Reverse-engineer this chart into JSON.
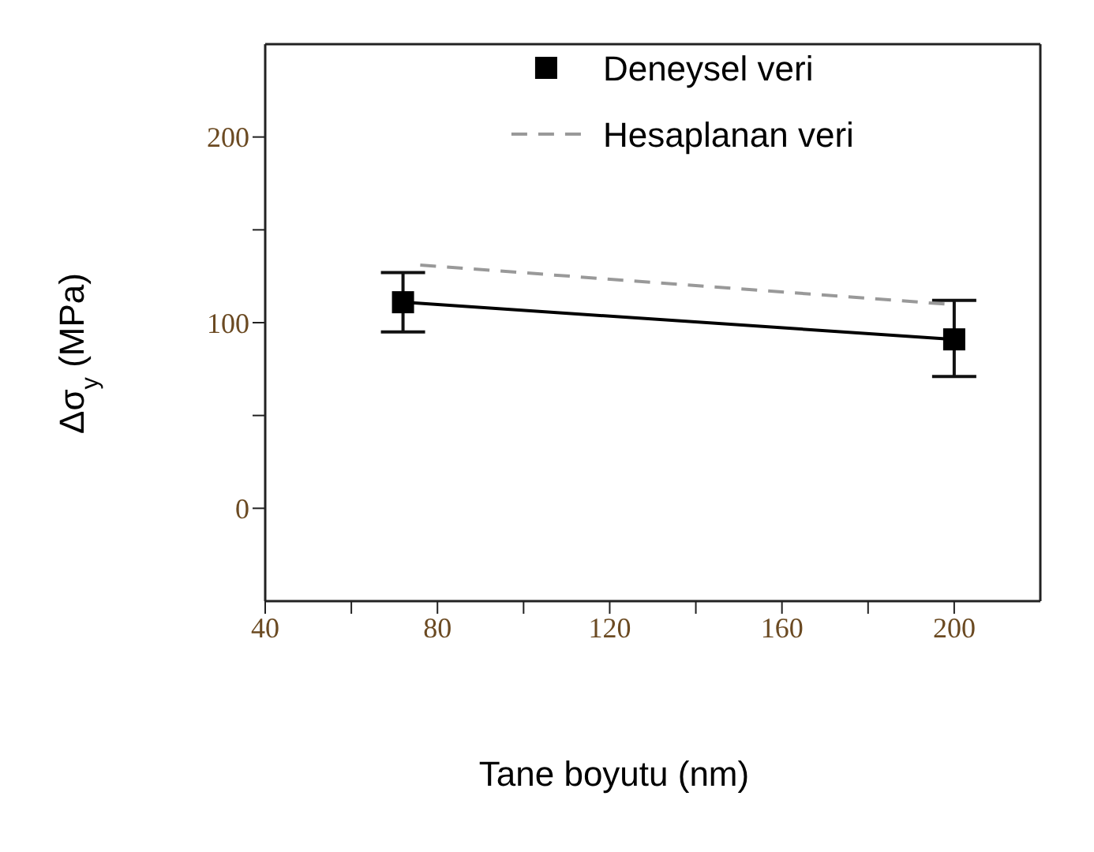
{
  "chart_data": {
    "type": "line",
    "xlabel": "Tane boyutu (nm)",
    "ylabel": "Δσ$_{y}$ (MPa)",
    "xlim": [
      40,
      220
    ],
    "ylim": [
      -50,
      250
    ],
    "xticks": [
      40,
      {
        "value": 60,
        "label": null
      },
      80,
      {
        "value": 100,
        "label": null
      },
      120,
      {
        "value": 140,
        "label": null
      },
      160,
      {
        "value": 180,
        "label": null
      },
      200
    ],
    "yticks": [
      0,
      {
        "value": 50,
        "label": null
      },
      100,
      {
        "value": 150,
        "label": null
      },
      200
    ],
    "legend": "top",
    "series": [
      {
        "name": "Deneysel veri",
        "color": "#000000",
        "marker": "square",
        "line_style": "solid",
        "x": [
          72,
          200
        ],
        "values": [
          111,
          91
        ],
        "errors": [
          [
            95,
            127
          ],
          [
            71,
            112
          ]
        ]
      },
      {
        "name": "Hesaplanan veri",
        "color": "#999999",
        "marker": "none",
        "line_style": "dashed",
        "x": [
          76,
          198
        ],
        "values": [
          131,
          110
        ]
      }
    ]
  }
}
